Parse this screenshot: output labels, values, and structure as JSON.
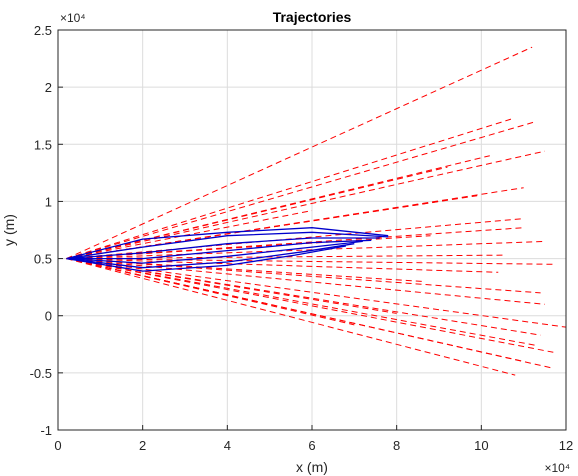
{
  "chart_data": {
    "type": "line",
    "title": "Trajectories",
    "xlabel": "x (m)",
    "ylabel": "y (m)",
    "xlim": [
      0,
      120000
    ],
    "ylim": [
      -10000,
      25000
    ],
    "grid": true,
    "x_exponent_label": "×10⁴",
    "y_exponent_label": "×10⁴",
    "xticks": [
      0,
      20000,
      40000,
      60000,
      80000,
      100000,
      120000
    ],
    "xtick_labels": [
      "0",
      "2",
      "4",
      "6",
      "8",
      "10",
      "12"
    ],
    "yticks": [
      -10000,
      -5000,
      0,
      5000,
      10000,
      15000,
      20000,
      25000
    ],
    "ytick_labels": [
      "-1",
      "-0.5",
      "0",
      "0.5",
      "1",
      "1.5",
      "2",
      "2.5"
    ],
    "origin": [
      2000,
      5000
    ],
    "colors": {
      "dashed": "#ff0000",
      "solid": "#0000cc"
    },
    "series": [
      {
        "style": "dashed",
        "end": [
          112000,
          23500
        ]
      },
      {
        "style": "dashed",
        "end": [
          107000,
          17200
        ]
      },
      {
        "style": "dashed",
        "end": [
          113000,
          17000
        ]
      },
      {
        "style": "dashed",
        "end": [
          115000,
          14400
        ]
      },
      {
        "style": "dashed",
        "end": [
          102000,
          14000
        ]
      },
      {
        "style": "dashed",
        "end": [
          110000,
          11200
        ]
      },
      {
        "style": "dashed",
        "end": [
          99000,
          10500
        ]
      },
      {
        "style": "dashed",
        "end": [
          110000,
          8500
        ]
      },
      {
        "style": "dashed",
        "end": [
          110000,
          7700
        ]
      },
      {
        "style": "dashed",
        "end": [
          115000,
          6500
        ]
      },
      {
        "style": "dashed",
        "end": [
          105000,
          5300
        ]
      },
      {
        "style": "dashed",
        "end": [
          117000,
          4500
        ]
      },
      {
        "style": "dashed",
        "end": [
          104000,
          3800
        ]
      },
      {
        "style": "dashed",
        "end": [
          114000,
          2000
        ]
      },
      {
        "style": "dashed",
        "end": [
          115000,
          1000
        ]
      },
      {
        "style": "dashed",
        "end": [
          120000,
          -1000
        ]
      },
      {
        "style": "dashed",
        "end": [
          114000,
          -1700
        ]
      },
      {
        "style": "dashed",
        "end": [
          113000,
          -2600
        ]
      },
      {
        "style": "dashed",
        "end": [
          117000,
          -3200
        ]
      },
      {
        "style": "dashed",
        "end": [
          110000,
          -4000
        ]
      },
      {
        "style": "dashed",
        "end": [
          117000,
          -4600
        ]
      },
      {
        "style": "dashed",
        "end": [
          108000,
          -5200
        ]
      },
      {
        "style": "dashed",
        "end": [
          92000,
          13000
        ]
      },
      {
        "style": "dashed",
        "end": [
          90000,
          10000
        ]
      },
      {
        "style": "dashed",
        "end": [
          88000,
          7000
        ]
      },
      {
        "style": "dashed",
        "end": [
          86000,
          3000
        ]
      },
      {
        "style": "dashed",
        "end": [
          80000,
          200
        ]
      },
      {
        "style": "dashed",
        "end": [
          70000,
          -800
        ]
      },
      {
        "style": "dashed",
        "end": [
          60000,
          9200
        ]
      },
      {
        "style": "dashed",
        "end": [
          50000,
          1000
        ]
      },
      {
        "style": "solid",
        "points": [
          [
            2000,
            5000
          ],
          [
            20000,
            6700
          ],
          [
            40000,
            7300
          ],
          [
            60000,
            7700
          ],
          [
            78000,
            7000
          ]
        ]
      },
      {
        "style": "solid",
        "points": [
          [
            2000,
            5000
          ],
          [
            20000,
            6000
          ],
          [
            40000,
            7000
          ],
          [
            60000,
            7300
          ],
          [
            78000,
            6900
          ]
        ]
      },
      {
        "style": "solid",
        "points": [
          [
            2000,
            5000
          ],
          [
            20000,
            5500
          ],
          [
            40000,
            6300
          ],
          [
            60000,
            6800
          ],
          [
            76000,
            6800
          ]
        ]
      },
      {
        "style": "solid",
        "points": [
          [
            2000,
            5000
          ],
          [
            20000,
            5000
          ],
          [
            40000,
            5700
          ],
          [
            60000,
            6400
          ],
          [
            74000,
            6600
          ]
        ]
      },
      {
        "style": "solid",
        "points": [
          [
            2000,
            5000
          ],
          [
            20000,
            4600
          ],
          [
            40000,
            5200
          ],
          [
            60000,
            6000
          ],
          [
            72000,
            6500
          ]
        ]
      },
      {
        "style": "solid",
        "points": [
          [
            2000,
            5000
          ],
          [
            20000,
            4200
          ],
          [
            40000,
            4700
          ],
          [
            58000,
            5600
          ],
          [
            70000,
            6300
          ]
        ]
      },
      {
        "style": "solid",
        "points": [
          [
            2000,
            5000
          ],
          [
            20000,
            3900
          ],
          [
            40000,
            4400
          ],
          [
            56000,
            5300
          ],
          [
            68000,
            6100
          ]
        ]
      }
    ]
  }
}
